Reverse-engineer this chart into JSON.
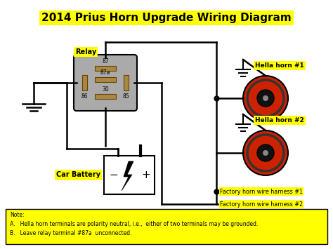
{
  "title": "2014 Prius Horn Upgrade Wiring Diagram",
  "title_fontsize": 11,
  "title_fontweight": "bold",
  "bg_color": "#FFFFFF",
  "yellow_bg": "#FFFF00",
  "relay_label": "Relay",
  "battery_label": "Car Battery",
  "horn1_label": "Hella horn #1",
  "horn2_label": "Hella horn #2",
  "harness1_label": "Factory horn wire harness #1",
  "harness2_label": "Factory horn wire harness #2",
  "note_text": "Note:\nA.   Hella horn terminals are polarity neutral, i.e.,  either of two terminals may be grounded.\nB.   Leave relay terminal #87a  unconnected.",
  "wire_color": "#000000",
  "relay_body_color": "#AAAAAA",
  "horn_red": "#CC2200",
  "horn_dark": "#111111",
  "horn_ring": "#333333"
}
